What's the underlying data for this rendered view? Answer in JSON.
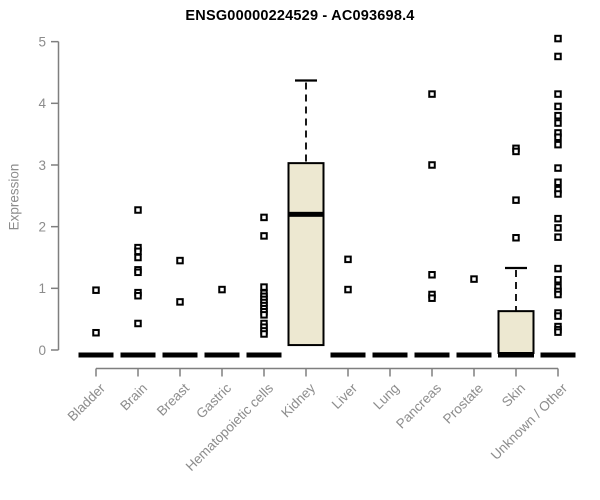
{
  "title": "ENSG00000224529 - AC093698.4",
  "colors": {
    "background": "#FFFFFF",
    "title_color": "#000000",
    "axis_line": "#7F7F7F",
    "tick_label": "#8C8C8C",
    "box_fill": "#EDE8D1",
    "box_border": "#000000",
    "outlier": "#000000"
  },
  "chart_data": {
    "type": "boxplot",
    "title": "ENSG00000224529 - AC093698.4",
    "xlabel": "",
    "ylabel": "Expression",
    "ylim": [
      0,
      5
    ],
    "yticks": [
      0,
      1,
      2,
      3,
      4,
      5
    ],
    "grid": false,
    "legend_position": "none",
    "categories": [
      "Bladder",
      "Brain",
      "Breast",
      "Gastric",
      "Hematopoietic cells",
      "Kidney",
      "Liver",
      "Lung",
      "Pancreas",
      "Prostate",
      "Skin",
      "Unknown / Other"
    ],
    "boxes": [
      {
        "category": "Bladder",
        "q1": 0,
        "median": 0,
        "q3": 0,
        "whisker_low": 0,
        "whisker_high": 0,
        "outliers": [
          0.97,
          0.28
        ]
      },
      {
        "category": "Brain",
        "q1": 0,
        "median": 0,
        "q3": 0,
        "whisker_low": 0,
        "whisker_high": 0,
        "outliers": [
          2.27,
          1.66,
          1.6,
          1.5,
          1.3,
          1.26,
          0.93,
          0.88,
          0.43
        ]
      },
      {
        "category": "Breast",
        "q1": 0,
        "median": 0,
        "q3": 0,
        "whisker_low": 0,
        "whisker_high": 0,
        "outliers": [
          1.45,
          0.78
        ]
      },
      {
        "category": "Gastric",
        "q1": 0,
        "median": 0,
        "q3": 0,
        "whisker_low": 0,
        "whisker_high": 0,
        "outliers": [
          0.98
        ]
      },
      {
        "category": "Hematopoietic cells",
        "q1": 0,
        "median": 0,
        "q3": 0,
        "whisker_low": 0,
        "whisker_high": 0,
        "outliers": [
          2.15,
          1.85,
          1.02,
          0.92,
          0.87,
          0.82,
          0.77,
          0.72,
          0.67,
          0.62,
          0.57,
          0.43,
          0.37,
          0.31,
          0.26
        ]
      },
      {
        "category": "Kidney",
        "q1": 0.08,
        "median": 2.2,
        "q3": 3.03,
        "whisker_low": 0.08,
        "whisker_high": 4.37,
        "outliers": []
      },
      {
        "category": "Liver",
        "q1": 0,
        "median": 0,
        "q3": 0,
        "whisker_low": 0,
        "whisker_high": 0,
        "outliers": [
          1.47,
          0.98
        ]
      },
      {
        "category": "Lung",
        "q1": 0,
        "median": 0,
        "q3": 0,
        "whisker_low": 0,
        "whisker_high": 0,
        "outliers": []
      },
      {
        "category": "Pancreas",
        "q1": 0,
        "median": 0,
        "q3": 0,
        "whisker_low": 0,
        "whisker_high": 0,
        "outliers": [
          4.15,
          3.0,
          1.22,
          0.9,
          0.84
        ]
      },
      {
        "category": "Prostate",
        "q1": 0,
        "median": 0,
        "q3": 0,
        "whisker_low": 0,
        "whisker_high": 0,
        "outliers": [
          1.15
        ]
      },
      {
        "category": "Skin",
        "q1": 0,
        "median": 0,
        "q3": 0.63,
        "whisker_low": 0,
        "whisker_high": 1.33,
        "outliers": [
          3.27,
          3.22,
          2.43,
          1.82
        ]
      },
      {
        "category": "Unknown / Other",
        "q1": 0,
        "median": 0,
        "q3": 0,
        "whisker_low": 0,
        "whisker_high": 0,
        "outliers": [
          5.05,
          4.76,
          4.15,
          3.95,
          3.8,
          3.68,
          3.52,
          3.45,
          3.33,
          2.95,
          2.72,
          2.6,
          2.53,
          2.13,
          1.98,
          1.83,
          1.32,
          1.14,
          1.02,
          0.95,
          0.9,
          0.6,
          0.55,
          0.38,
          0.33,
          0.29
        ]
      }
    ]
  }
}
